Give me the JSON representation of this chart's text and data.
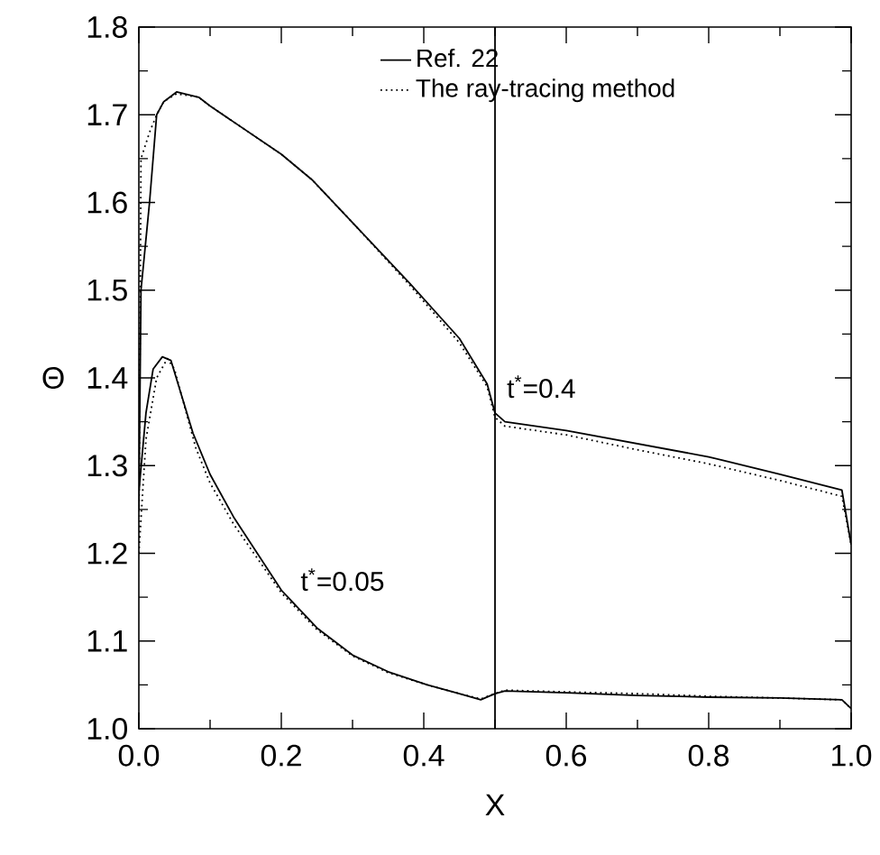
{
  "chart_data": {
    "type": "line",
    "xlabel": "X",
    "ylabel": "Θ",
    "xlim": [
      0,
      1
    ],
    "ylim": [
      1.0,
      1.8
    ],
    "xticks": [
      {
        "value": 0,
        "label": "0.0"
      },
      {
        "value": 0.2,
        "label": "0.2"
      },
      {
        "value": 0.4,
        "label": "0.4"
      },
      {
        "value": 0.6,
        "label": "0.6"
      },
      {
        "value": 0.8,
        "label": "0.8"
      },
      {
        "value": 1,
        "label": "1.0"
      }
    ],
    "yticks": [
      {
        "value": 1.0,
        "label": "1.0"
      },
      {
        "value": 1.1,
        "label": "1.1"
      },
      {
        "value": 1.2,
        "label": "1.2"
      },
      {
        "value": 1.3,
        "label": "1.3"
      },
      {
        "value": 1.4,
        "label": "1.4"
      },
      {
        "value": 1.5,
        "label": "1.5"
      },
      {
        "value": 1.6,
        "label": "1.6"
      },
      {
        "value": 1.7,
        "label": "1.7"
      },
      {
        "value": 1.8,
        "label": "1.8"
      }
    ],
    "legend": "top right",
    "grid": false,
    "marker": "none",
    "series": [
      {
        "name": "Ref. 22",
        "color": "#000000",
        "line_style": "solid",
        "x": [
          0,
          0.003,
          0.015,
          0.025,
          0.035,
          0.053,
          0.084,
          0.1,
          0.2,
          0.243,
          0.3,
          0.38,
          0.45,
          0.489,
          0.5,
          0.514,
          0.6,
          0.7,
          0.8,
          0.9,
          0.987,
          1.0
        ],
        "values": [
          1.25,
          1.5,
          1.6,
          1.7,
          1.715,
          1.726,
          1.72,
          1.71,
          1.655,
          1.626,
          1.577,
          1.508,
          1.445,
          1.393,
          1.36,
          1.35,
          1.34,
          1.325,
          1.31,
          1.29,
          1.272,
          1.21
        ]
      },
      {
        "name": "The ray-tracing method",
        "color": "#000000",
        "line_style": "dotted",
        "x": [
          0,
          0.003,
          0.015,
          0.025,
          0.035,
          0.053,
          0.084,
          0.1,
          0.2,
          0.243,
          0.3,
          0.38,
          0.45,
          0.489,
          0.5,
          0.514,
          0.6,
          0.7,
          0.8,
          0.9,
          0.987,
          1.0
        ],
        "values": [
          1.2,
          1.65,
          1.68,
          1.7,
          1.715,
          1.724,
          1.72,
          1.71,
          1.655,
          1.626,
          1.577,
          1.506,
          1.44,
          1.39,
          1.355,
          1.345,
          1.335,
          1.318,
          1.302,
          1.283,
          1.265,
          1.21
        ]
      },
      {
        "color": "#000000",
        "line_style": "solid",
        "x": [
          0,
          0.01,
          0.02,
          0.033,
          0.045,
          0.076,
          0.1,
          0.134,
          0.2,
          0.25,
          0.3,
          0.35,
          0.405,
          0.45,
          0.48,
          0.5,
          0.514,
          0.6,
          0.7,
          0.8,
          0.9,
          0.987,
          1.0
        ],
        "values": [
          1.27,
          1.36,
          1.41,
          1.424,
          1.42,
          1.337,
          1.29,
          1.24,
          1.158,
          1.115,
          1.084,
          1.065,
          1.05,
          1.04,
          1.033,
          1.04,
          1.043,
          1.041,
          1.038,
          1.036,
          1.035,
          1.033,
          1.023
        ]
      },
      {
        "color": "#000000",
        "line_style": "dotted",
        "x": [
          0,
          0.01,
          0.025,
          0.04,
          0.05,
          0.08,
          0.1,
          0.134,
          0.2,
          0.25,
          0.3,
          0.35,
          0.405,
          0.45,
          0.48,
          0.5,
          0.514,
          0.6,
          0.7,
          0.8,
          0.9,
          0.987,
          1.0
        ],
        "values": [
          1.2,
          1.33,
          1.4,
          1.422,
          1.41,
          1.32,
          1.28,
          1.232,
          1.155,
          1.113,
          1.083,
          1.064,
          1.05,
          1.04,
          1.034,
          1.04,
          1.044,
          1.042,
          1.04,
          1.037,
          1.035,
          1.033,
          1.023
        ]
      }
    ],
    "ref_lines": [
      {
        "axis": "x",
        "value": 0.5,
        "color": "#000000",
        "line_style": "solid"
      }
    ],
    "annotations": [
      "t$^{*}$=0.4",
      "t$^{*}$=0.05"
    ]
  }
}
